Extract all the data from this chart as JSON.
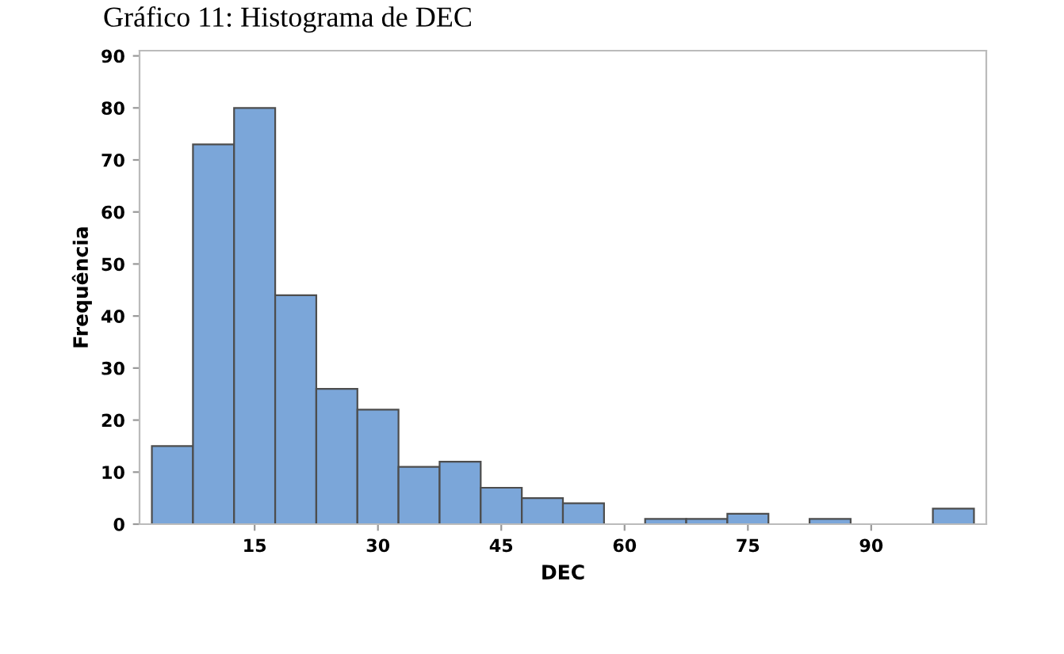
{
  "chart_data": {
    "type": "histogram",
    "title": "Gráfico 11: Histograma de DEC",
    "xlabel": "DEC",
    "ylabel": "Frequência",
    "bins": [
      2.5,
      7.5,
      12.5,
      17.5,
      22.5,
      27.5,
      32.5,
      37.5,
      42.5,
      47.5,
      52.5,
      57.5,
      62.5,
      67.5,
      72.5,
      77.5,
      82.5,
      87.5,
      92.5,
      97.5,
      102.5
    ],
    "values": [
      15,
      73,
      80,
      44,
      26,
      22,
      11,
      12,
      7,
      5,
      4,
      0,
      1,
      1,
      2,
      0,
      1,
      0,
      0,
      3
    ],
    "color": "#7ba6d9",
    "xlim": [
      1,
      104
    ],
    "ylim": [
      0,
      91
    ],
    "xticks": [
      15,
      30,
      45,
      60,
      75,
      90
    ],
    "yticks": [
      0,
      10,
      20,
      30,
      40,
      50,
      60,
      70,
      80,
      90
    ],
    "grid": false
  }
}
